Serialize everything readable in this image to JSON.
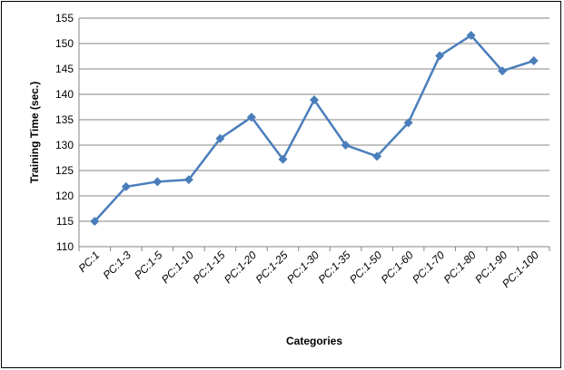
{
  "chart_data": {
    "type": "line",
    "categories": [
      "PC:1",
      "PC:1-3",
      "PC:1-5",
      "PC:1-10",
      "PC:1-15",
      "PC:1-20",
      "PC:1-25",
      "PC:1-30",
      "PC:1-35",
      "PC:1-50",
      "PC:1-60",
      "PC:1-70",
      "PC:1-80",
      "PC:1-90",
      "PC:1-100"
    ],
    "values": [
      115.0,
      121.8,
      122.8,
      123.2,
      131.3,
      135.5,
      127.2,
      138.9,
      130.0,
      127.8,
      134.4,
      147.6,
      151.6,
      144.6,
      146.6
    ],
    "title": "",
    "xlabel": "Categories",
    "ylabel": "Training Time (sec.)",
    "ylim": [
      110,
      155
    ],
    "yticks": [
      "110",
      "115",
      "120",
      "125",
      "130",
      "135",
      "140",
      "145",
      "150",
      "155"
    ],
    "grid": true,
    "legend": "none",
    "line_color": "#4a7ebb",
    "marker": "diamond"
  }
}
